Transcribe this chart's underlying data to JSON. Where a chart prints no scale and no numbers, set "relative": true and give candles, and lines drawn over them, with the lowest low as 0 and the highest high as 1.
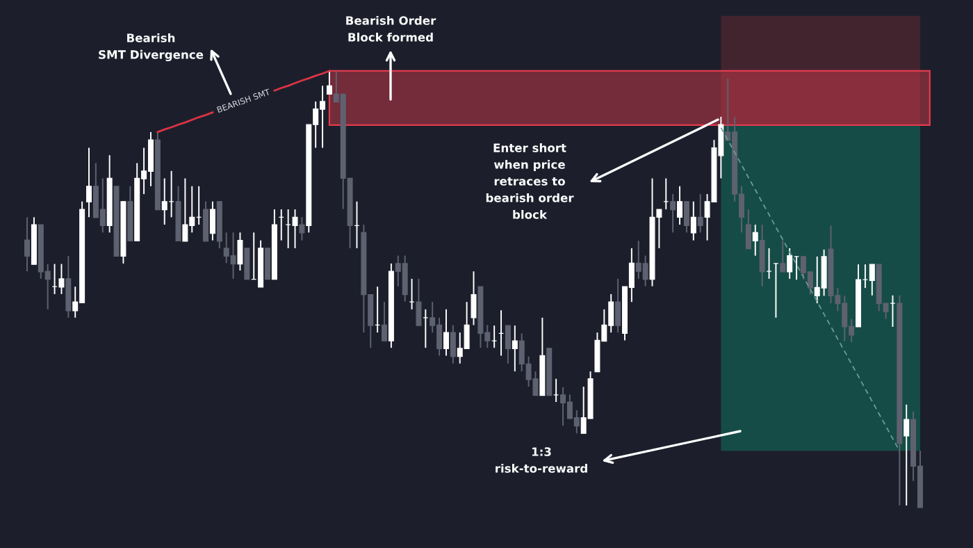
{
  "chart_data": {
    "type": "candlestick",
    "relative": true,
    "categories": [
      null,
      null,
      null,
      null,
      null,
      null,
      null,
      null,
      null,
      null,
      null,
      null,
      null,
      null,
      null,
      null,
      null,
      null,
      null,
      null,
      null,
      null,
      null,
      null,
      null,
      null,
      null,
      null,
      null,
      null,
      null,
      null,
      null,
      null,
      null,
      null,
      null,
      null,
      null,
      null,
      null,
      null,
      null,
      null,
      null,
      null,
      null,
      null,
      null,
      null,
      null,
      null,
      null,
      null,
      null,
      null,
      null,
      null,
      null,
      null,
      null,
      null,
      null,
      null,
      null,
      null,
      null,
      null,
      null,
      null,
      null,
      null,
      null,
      null,
      null,
      null,
      null,
      null,
      null,
      null,
      null,
      null,
      null,
      null,
      null,
      null,
      null,
      null,
      null,
      null,
      null,
      null,
      null,
      null,
      null,
      null,
      null,
      null,
      null,
      null,
      null,
      null,
      null,
      null,
      null,
      null,
      null,
      null,
      null,
      null,
      null,
      null,
      null,
      null,
      null,
      null,
      null,
      null,
      null,
      null,
      null,
      null,
      null,
      null,
      null,
      null,
      null,
      null,
      null,
      null,
      null
    ],
    "ohlc": [
      [
        0.613,
        0.665,
        0.541,
        0.576
      ],
      [
        0.557,
        0.665,
        0.557,
        0.648
      ],
      [
        0.648,
        0.648,
        0.524,
        0.54
      ],
      [
        0.541,
        0.558,
        0.454,
        0.523
      ],
      [
        0.506,
        0.558,
        0.489,
        0.506
      ],
      [
        0.505,
        0.558,
        0.489,
        0.524
      ],
      [
        0.524,
        0.576,
        0.435,
        0.451
      ],
      [
        0.451,
        0.506,
        0.435,
        0.471
      ],
      [
        0.469,
        0.701,
        0.469,
        0.683
      ],
      [
        0.7,
        0.824,
        0.665,
        0.736
      ],
      [
        0.736,
        0.789,
        0.664,
        0.664
      ],
      [
        0.683,
        0.754,
        0.63,
        0.646
      ],
      [
        0.646,
        0.807,
        0.63,
        0.754
      ],
      [
        0.736,
        0.736,
        0.576,
        0.576
      ],
      [
        0.576,
        0.701,
        0.559,
        0.701
      ],
      [
        0.701,
        0.736,
        0.611,
        0.611
      ],
      [
        0.611,
        0.789,
        0.611,
        0.754
      ],
      [
        0.753,
        0.824,
        0.718,
        0.771
      ],
      [
        0.77,
        0.86,
        0.736,
        0.842
      ],
      [
        0.842,
        0.86,
        0.682,
        0.682
      ],
      [
        0.682,
        0.754,
        0.648,
        0.701
      ],
      [
        0.701,
        0.771,
        0.665,
        0.701
      ],
      [
        0.701,
        0.736,
        0.611,
        0.611
      ],
      [
        0.61,
        0.754,
        0.61,
        0.648
      ],
      [
        0.646,
        0.736,
        0.63,
        0.665
      ],
      [
        0.665,
        0.736,
        0.648,
        0.665
      ],
      [
        0.683,
        0.701,
        0.61,
        0.61
      ],
      [
        0.628,
        0.701,
        0.612,
        0.683
      ],
      [
        0.701,
        0.701,
        0.594,
        0.61
      ],
      [
        0.594,
        0.63,
        0.56,
        0.576
      ],
      [
        0.577,
        0.63,
        0.524,
        0.558
      ],
      [
        0.558,
        0.63,
        0.543,
        0.612
      ],
      [
        0.594,
        0.594,
        0.523,
        0.523
      ],
      [
        0.523,
        0.63,
        0.523,
        0.523
      ],
      [
        0.505,
        0.612,
        0.505,
        0.594
      ],
      [
        0.594,
        0.594,
        0.523,
        0.523
      ],
      [
        0.523,
        0.683,
        0.523,
        0.648
      ],
      [
        0.665,
        0.683,
        0.612,
        0.665
      ],
      [
        0.648,
        0.683,
        0.594,
        0.648
      ],
      [
        0.646,
        0.683,
        0.594,
        0.665
      ],
      [
        0.648,
        0.665,
        0.612,
        0.629
      ],
      [
        0.646,
        0.877,
        0.63,
        0.877
      ],
      [
        0.877,
        0.93,
        0.824,
        0.913
      ],
      [
        0.912,
        0.966,
        0.824,
        0.93
      ],
      [
        0.947,
        1.0,
        0.947,
        0.966
      ],
      [
        0.947,
        0.999,
        0.929,
        0.929
      ],
      [
        0.947,
        0.947,
        0.684,
        0.754
      ],
      [
        0.754,
        0.754,
        0.594,
        0.646
      ],
      [
        0.646,
        0.701,
        0.594,
        0.646
      ],
      [
        0.63,
        0.648,
        0.401,
        0.488
      ],
      [
        0.488,
        0.488,
        0.366,
        0.417
      ],
      [
        0.418,
        0.506,
        0.401,
        0.418
      ],
      [
        0.418,
        0.471,
        0.382,
        0.382
      ],
      [
        0.382,
        0.559,
        0.366,
        0.541
      ],
      [
        0.559,
        0.577,
        0.507,
        0.541
      ],
      [
        0.559,
        0.577,
        0.472,
        0.488
      ],
      [
        0.471,
        0.524,
        0.454,
        0.471
      ],
      [
        0.471,
        0.524,
        0.417,
        0.417
      ],
      [
        0.435,
        0.454,
        0.366,
        0.435
      ],
      [
        0.435,
        0.471,
        0.401,
        0.417
      ],
      [
        0.418,
        0.435,
        0.348,
        0.364
      ],
      [
        0.364,
        0.454,
        0.348,
        0.401
      ],
      [
        0.401,
        0.418,
        0.33,
        0.346
      ],
      [
        0.346,
        0.401,
        0.33,
        0.365
      ],
      [
        0.364,
        0.471,
        0.364,
        0.418
      ],
      [
        0.435,
        0.541,
        0.418,
        0.488
      ],
      [
        0.506,
        0.506,
        0.366,
        0.399
      ],
      [
        0.401,
        0.418,
        0.366,
        0.382
      ],
      [
        0.382,
        0.417,
        0.366,
        0.382
      ],
      [
        0.399,
        0.452,
        0.348,
        0.399
      ],
      [
        0.417,
        0.417,
        0.33,
        0.364
      ],
      [
        0.364,
        0.417,
        0.312,
        0.382
      ],
      [
        0.382,
        0.399,
        0.312,
        0.329
      ],
      [
        0.329,
        0.346,
        0.277,
        0.293
      ],
      [
        0.295,
        0.312,
        0.257,
        0.257
      ],
      [
        0.257,
        0.435,
        0.257,
        0.348
      ],
      [
        0.365,
        0.365,
        0.257,
        0.257
      ],
      [
        0.258,
        0.295,
        0.242,
        0.258
      ],
      [
        0.258,
        0.276,
        0.188,
        0.24
      ],
      [
        0.242,
        0.259,
        0.204,
        0.204
      ],
      [
        0.206,
        0.223,
        0.17,
        0.187
      ],
      [
        0.17,
        0.277,
        0.17,
        0.206
      ],
      [
        0.204,
        0.312,
        0.204,
        0.295
      ],
      [
        0.311,
        0.401,
        0.311,
        0.383
      ],
      [
        0.381,
        0.454,
        0.381,
        0.418
      ],
      [
        0.417,
        0.489,
        0.401,
        0.471
      ],
      [
        0.471,
        0.524,
        0.401,
        0.417
      ],
      [
        0.399,
        0.506,
        0.383,
        0.506
      ],
      [
        0.504,
        0.594,
        0.471,
        0.56
      ],
      [
        0.56,
        0.611,
        0.524,
        0.541
      ],
      [
        0.559,
        0.577,
        0.507,
        0.523
      ],
      [
        0.523,
        0.754,
        0.507,
        0.665
      ],
      [
        0.665,
        0.683,
        0.594,
        0.683
      ],
      [
        0.701,
        0.754,
        0.683,
        0.701
      ],
      [
        0.701,
        0.718,
        0.63,
        0.682
      ],
      [
        0.665,
        0.736,
        0.648,
        0.701
      ],
      [
        0.701,
        0.701,
        0.63,
        0.646
      ],
      [
        0.629,
        0.701,
        0.612,
        0.665
      ],
      [
        0.665,
        0.718,
        0.63,
        0.646
      ],
      [
        0.665,
        0.718,
        0.612,
        0.701
      ],
      [
        0.7,
        0.842,
        0.7,
        0.824
      ],
      [
        0.806,
        0.895,
        0.754,
        0.877
      ],
      [
        0.86,
        0.983,
        0.841,
        0.841
      ],
      [
        0.86,
        0.895,
        0.701,
        0.718
      ],
      [
        0.718,
        0.736,
        0.63,
        0.665
      ],
      [
        0.648,
        0.683,
        0.593,
        0.593
      ],
      [
        0.611,
        0.648,
        0.577,
        0.63
      ],
      [
        0.612,
        0.648,
        0.507,
        0.54
      ],
      [
        0.541,
        0.594,
        0.524,
        0.541
      ],
      [
        0.559,
        0.559,
        0.435,
        0.559
      ],
      [
        0.559,
        0.612,
        0.54,
        0.54
      ],
      [
        0.54,
        0.594,
        0.524,
        0.577
      ],
      [
        0.575,
        0.575,
        0.522,
        0.575
      ],
      [
        0.575,
        0.575,
        0.523,
        0.538
      ],
      [
        0.54,
        0.54,
        0.488,
        0.503
      ],
      [
        0.485,
        0.575,
        0.468,
        0.504
      ],
      [
        0.503,
        0.591,
        0.485,
        0.575
      ],
      [
        0.592,
        0.646,
        0.468,
        0.485
      ],
      [
        0.486,
        0.503,
        0.45,
        0.467
      ],
      [
        0.468,
        0.485,
        0.381,
        0.414
      ],
      [
        0.415,
        0.432,
        0.379,
        0.395
      ],
      [
        0.414,
        0.557,
        0.414,
        0.522
      ],
      [
        0.522,
        0.557,
        0.503,
        0.522
      ],
      [
        0.52,
        0.557,
        0.486,
        0.557
      ],
      [
        0.557,
        0.557,
        0.45,
        0.467
      ],
      [
        0.468,
        0.468,
        0.432,
        0.449
      ],
      [
        0.468,
        0.486,
        0.414,
        0.468
      ],
      [
        0.468,
        0.486,
        0.005,
        0.147
      ],
      [
        0.164,
        0.236,
        0.005,
        0.202
      ],
      [
        0.202,
        0.22,
        0.061,
        0.095
      ],
      [
        0.095,
        0.13,
        0,
        0
      ]
    ],
    "colors": [
      "#5e6270",
      "#ffffff",
      "#5e6270",
      "#5e6270",
      "#ffffff",
      "#ffffff",
      "#5e6270",
      "#ffffff",
      "#ffffff",
      "#ffffff",
      "#5e6270",
      "#5e6270",
      "#ffffff",
      "#5e6270",
      "#ffffff",
      "#5e6270",
      "#ffffff",
      "#ffffff",
      "#ffffff",
      "#5e6270",
      "#ffffff",
      "#ffffff",
      "#5e6270",
      "#ffffff",
      "#ffffff",
      "#ffffff",
      "#5e6270",
      "#ffffff",
      "#5e6270",
      "#5e6270",
      "#5e6270",
      "#ffffff",
      "#5e6270",
      "#ffffff",
      "#ffffff",
      "#5e6270",
      "#ffffff",
      "#ffffff",
      "#ffffff",
      "#ffffff",
      "#5e6270",
      "#ffffff",
      "#ffffff",
      "#ffffff",
      "#ffffff",
      "#5e6270",
      "#5e6270",
      "#5e6270",
      "#ffffff",
      "#5e6270",
      "#5e6270",
      "#ffffff",
      "#5e6270",
      "#ffffff",
      "#5e6270",
      "#5e6270",
      "#ffffff",
      "#5e6270",
      "#ffffff",
      "#5e6270",
      "#5e6270",
      "#ffffff",
      "#5e6270",
      "#ffffff",
      "#ffffff",
      "#ffffff",
      "#5e6270",
      "#5e6270",
      "#ffffff",
      "#ffffff",
      "#5e6270",
      "#ffffff",
      "#5e6270",
      "#5e6270",
      "#5e6270",
      "#ffffff",
      "#5e6270",
      "#ffffff",
      "#5e6270",
      "#5e6270",
      "#5e6270",
      "#ffffff",
      "#ffffff",
      "#ffffff",
      "#ffffff",
      "#ffffff",
      "#5e6270",
      "#ffffff",
      "#ffffff",
      "#5e6270",
      "#5e6270",
      "#ffffff",
      "#ffffff",
      "#ffffff",
      "#5e6270",
      "#ffffff",
      "#5e6270",
      "#ffffff",
      "#5e6270",
      "#ffffff",
      "#ffffff",
      "#ffffff",
      "#5e6270",
      "#5e6270",
      "#5e6270",
      "#5e6270",
      "#ffffff",
      "#5e6270",
      "#ffffff",
      "#ffffff",
      "#5e6270",
      "#ffffff",
      "#ffffff",
      "#5e6270",
      "#5e6270",
      "#ffffff",
      "#ffffff",
      "#5e6270",
      "#5e6270",
      "#5e6270",
      "#5e6270",
      "#ffffff",
      "#ffffff",
      "#ffffff",
      "#5e6270",
      "#5e6270",
      "#ffffff",
      "#5e6270",
      "#ffffff",
      "#5e6270",
      "#5e6270"
    ],
    "series": [
      {
        "type": "line",
        "name": "BEARISH SMT",
        "color": "#d93445",
        "line_style": "solid",
        "values": [
          null,
          null,
          null,
          null,
          null,
          null,
          null,
          null,
          null,
          null,
          null,
          null,
          null,
          null,
          null,
          null,
          null,
          null,
          null,
          0.86,
          0.866,
          0.871,
          0.877,
          0.882,
          0.888,
          0.894,
          0.899,
          0.905,
          null,
          null,
          null,
          null,
          null,
          null,
          null,
          null,
          0.955,
          0.961,
          0.966,
          0.972,
          0.978,
          0.983,
          0.989,
          0.994,
          1.0,
          null,
          null,
          null,
          null,
          null,
          null,
          null,
          null,
          null,
          null,
          null,
          null,
          null,
          null,
          null,
          null,
          null,
          null,
          null,
          null,
          null,
          null,
          null,
          null,
          null,
          null,
          null,
          null,
          null,
          null,
          null,
          null,
          null,
          null,
          null,
          null,
          null,
          null,
          null,
          null,
          null,
          null,
          null,
          null,
          null,
          null,
          null,
          null,
          null,
          null,
          null,
          null,
          null,
          null,
          null,
          null,
          null,
          null,
          null,
          null,
          null,
          null,
          null,
          null,
          null,
          null,
          null,
          null,
          null,
          null,
          null,
          null,
          null,
          null,
          null,
          null,
          null,
          null,
          null,
          null,
          null,
          null,
          null,
          null,
          null,
          null
        ]
      },
      {
        "type": "line",
        "color": "#6d9a94",
        "line_style": "dashed",
        "values": [
          null,
          null,
          null,
          null,
          null,
          null,
          null,
          null,
          null,
          null,
          null,
          null,
          null,
          null,
          null,
          null,
          null,
          null,
          null,
          null,
          null,
          null,
          null,
          null,
          null,
          null,
          null,
          null,
          null,
          null,
          null,
          null,
          null,
          null,
          null,
          null,
          null,
          null,
          null,
          null,
          null,
          null,
          null,
          null,
          null,
          null,
          null,
          null,
          null,
          null,
          null,
          null,
          null,
          null,
          null,
          null,
          null,
          null,
          null,
          null,
          null,
          null,
          null,
          null,
          null,
          null,
          null,
          null,
          null,
          null,
          null,
          null,
          null,
          null,
          null,
          null,
          null,
          null,
          null,
          null,
          null,
          null,
          null,
          null,
          null,
          null,
          null,
          null,
          null,
          null,
          null,
          null,
          null,
          null,
          null,
          null,
          null,
          null,
          null,
          null,
          null,
          0.87,
          0.842,
          0.813,
          0.785,
          0.756,
          0.728,
          0.699,
          0.671,
          0.642,
          0.614,
          0.585,
          0.557,
          0.528,
          0.5,
          0.472,
          0.443,
          0.415,
          0.386,
          0.358,
          0.329,
          0.301,
          0.272,
          0.244,
          0.215,
          0.187,
          0.158,
          0.13,
          null,
          null,
          null
        ]
      }
    ],
    "bands": [
      {
        "axis": "y",
        "from": 0.876,
        "to": 1.0,
        "color": "#e03b4e"
      },
      {
        "axis": "y",
        "from": 0.876,
        "to": 1.126,
        "color": "#42242f"
      },
      {
        "axis": "y",
        "from": 0.13,
        "to": 0.876,
        "color": "#164c47"
      }
    ],
    "annotations": [
      "Bearish\nSMT Divergence",
      "Bearish Order\nBlock formed",
      "Enter short\nwhen price\nretraces to\nbearish order\nblock",
      "1:3\nrisk-to-reward"
    ]
  }
}
